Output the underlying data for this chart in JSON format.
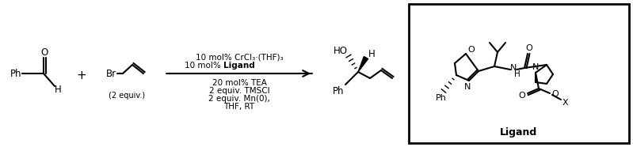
{
  "bg": "#ffffff",
  "above1": "10 mol% CrCl₃·(THF)₃",
  "above2_plain": "10 mol% ",
  "above2_bold": "Ligand",
  "below": [
    "20 mol% TEA",
    "2 equiv. TMSCl",
    "2 equiv. Mn(0),",
    "THF, RT"
  ],
  "equiv": "(2 equiv.)",
  "ligand_label": "Ligand",
  "lw": 1.5,
  "fs": 8.5,
  "fss": 7.5
}
